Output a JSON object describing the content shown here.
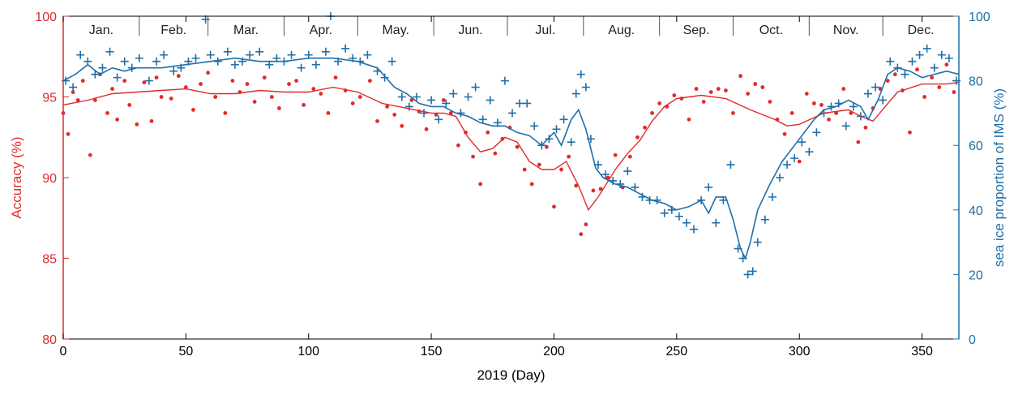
{
  "chart_data": {
    "type": "scatter",
    "xlabel": "2019 (Day)",
    "ylabel_left": "Accuracy (%)",
    "ylabel_right": "sea ice proportion of IMS (%)",
    "xlim": [
      0,
      365
    ],
    "ylim_left": [
      80,
      100
    ],
    "ylim_right": [
      0,
      100
    ],
    "x_ticks": [
      "0",
      "50",
      "100",
      "150",
      "200",
      "250",
      "300",
      "350"
    ],
    "x_tick_values": [
      0,
      50,
      100,
      150,
      200,
      250,
      300,
      350
    ],
    "y_left_ticks": [
      "80",
      "85",
      "90",
      "95",
      "100"
    ],
    "y_left_tick_values": [
      80,
      85,
      90,
      95,
      100
    ],
    "y_right_ticks": [
      "0",
      "20",
      "40",
      "60",
      "80",
      "100"
    ],
    "y_right_tick_values": [
      0,
      20,
      40,
      60,
      80,
      100
    ],
    "months": [
      "Jan.",
      "Feb.",
      "Mar.",
      "Apr.",
      "May.",
      "Jun.",
      "Jul.",
      "Aug.",
      "Sep.",
      "Oct.",
      "Nov.",
      "Dec."
    ],
    "month_starts": [
      0,
      31,
      59,
      90,
      120,
      151,
      181,
      212,
      243,
      273,
      304,
      334,
      365
    ],
    "grid": false,
    "colors": {
      "accuracy": "#e02b2b",
      "ims": "#1f6fa8",
      "axis": "#000000"
    },
    "series": [
      {
        "axis": "left",
        "marker": "dot",
        "smooth_x": [
          0,
          10,
          20,
          30,
          40,
          50,
          60,
          70,
          80,
          90,
          100,
          110,
          120,
          130,
          140,
          150,
          155,
          160,
          165,
          170,
          175,
          180,
          185,
          190,
          195,
          200,
          205,
          210,
          214,
          218,
          225,
          230,
          235,
          240,
          245,
          250,
          255,
          260,
          270,
          280,
          290,
          295,
          300,
          310,
          320,
          325,
          330,
          340,
          350,
          360,
          365
        ],
        "smooth_y": [
          94.5,
          94.8,
          95.2,
          95.3,
          95.4,
          95.5,
          95.2,
          95.2,
          95.4,
          95.3,
          95.3,
          95.6,
          95.3,
          94.6,
          94.3,
          94.0,
          94.0,
          93.8,
          92.5,
          91.6,
          91.8,
          92.5,
          92.2,
          91.0,
          90.5,
          90.5,
          91.0,
          89.5,
          88.0,
          88.8,
          90.5,
          91.5,
          92.3,
          93.5,
          94.4,
          94.9,
          95.0,
          95.1,
          94.9,
          94.2,
          93.6,
          93.2,
          93.3,
          94.0,
          94.2,
          93.8,
          93.5,
          95.3,
          95.8,
          95.8,
          95.9
        ],
        "scatter_x": [
          0,
          2,
          4,
          6,
          8,
          11,
          13,
          15,
          18,
          20,
          22,
          25,
          27,
          30,
          33,
          36,
          38,
          40,
          44,
          47,
          50,
          53,
          56,
          59,
          62,
          66,
          69,
          72,
          75,
          78,
          82,
          85,
          88,
          92,
          95,
          98,
          102,
          105,
          108,
          111,
          115,
          118,
          121,
          125,
          128,
          132,
          135,
          138,
          142,
          145,
          148,
          152,
          155,
          158,
          161,
          164,
          167,
          170,
          173,
          176,
          179,
          182,
          185,
          188,
          191,
          194,
          197,
          200,
          203,
          206,
          209,
          211,
          213,
          216,
          219,
          222,
          225,
          228,
          231,
          234,
          237,
          240,
          243,
          246,
          249,
          252,
          255,
          258,
          261,
          264,
          267,
          270,
          273,
          276,
          279,
          282,
          285,
          288,
          291,
          294,
          297,
          300,
          303,
          306,
          309,
          312,
          315,
          318,
          321,
          324,
          327,
          330,
          333,
          336,
          339,
          342,
          345,
          348,
          351,
          354,
          357,
          360,
          363
        ],
        "scatter_y": [
          94.0,
          92.7,
          95.3,
          94.8,
          96.0,
          91.4,
          94.8,
          96.4,
          94.0,
          95.5,
          93.6,
          96.0,
          94.5,
          93.3,
          95.9,
          93.5,
          96.2,
          95.0,
          94.9,
          96.3,
          95.6,
          94.2,
          95.8,
          96.5,
          95.0,
          94.0,
          96.0,
          95.3,
          95.8,
          94.7,
          96.2,
          95.0,
          94.3,
          95.8,
          96.0,
          94.5,
          95.5,
          95.2,
          94.0,
          96.2,
          95.4,
          94.6,
          95.0,
          96.0,
          93.5,
          94.4,
          93.9,
          93.2,
          94.8,
          94.1,
          93.0,
          93.9,
          94.8,
          94.0,
          92.0,
          92.8,
          91.3,
          89.6,
          92.8,
          91.5,
          92.4,
          93.1,
          91.9,
          90.5,
          89.6,
          90.8,
          91.9,
          88.2,
          90.5,
          91.3,
          89.5,
          86.5,
          87.1,
          89.2,
          89.3,
          90.0,
          91.4,
          89.4,
          91.3,
          92.5,
          93.1,
          94.0,
          94.6,
          94.4,
          95.1,
          94.9,
          93.6,
          95.5,
          94.7,
          95.3,
          95.5,
          95.4,
          94.0,
          96.3,
          95.2,
          95.8,
          95.6,
          94.7,
          93.6,
          92.7,
          94.0,
          91.0,
          95.2,
          94.6,
          94.5,
          93.6,
          94.0,
          95.5,
          94.0,
          92.2,
          93.1,
          94.3,
          95.5,
          96.0,
          96.4,
          95.4,
          92.8,
          96.7,
          95.0,
          96.2,
          95.6,
          97.0,
          95.3
        ]
      },
      {
        "axis": "right",
        "marker": "plus",
        "smooth_x": [
          0,
          5,
          10,
          15,
          20,
          25,
          30,
          40,
          50,
          60,
          70,
          80,
          90,
          100,
          110,
          120,
          128,
          135,
          140,
          145,
          150,
          155,
          160,
          165,
          170,
          175,
          180,
          185,
          190,
          195,
          200,
          203,
          207,
          210,
          213,
          217,
          220,
          225,
          230,
          235,
          240,
          245,
          250,
          255,
          260,
          263,
          266,
          270,
          273,
          276,
          278,
          280,
          283,
          288,
          293,
          298,
          302,
          306,
          310,
          315,
          320,
          325,
          328,
          332,
          336,
          340,
          345,
          350,
          355,
          360,
          365
        ],
        "smooth_y": [
          80,
          82,
          85,
          82,
          84,
          83,
          84,
          84,
          85,
          86,
          87,
          86,
          86,
          87,
          87,
          86,
          84,
          78,
          76,
          73,
          72,
          72,
          70,
          69,
          67,
          66,
          66,
          64,
          63,
          60,
          64,
          60,
          68,
          71,
          65,
          53,
          50,
          48,
          47,
          45,
          43,
          42,
          40,
          41,
          43,
          39,
          44,
          44,
          37,
          28,
          25,
          30,
          40,
          48,
          55,
          60,
          64,
          68,
          71,
          72,
          74,
          72,
          68,
          74,
          82,
          84,
          83,
          81,
          82,
          83,
          82
        ],
        "scatter_x": [
          1,
          4,
          7,
          10,
          13,
          16,
          19,
          22,
          25,
          28,
          31,
          35,
          38,
          41,
          45,
          48,
          51,
          54,
          58,
          60,
          63,
          67,
          70,
          73,
          76,
          80,
          84,
          87,
          90,
          93,
          97,
          100,
          103,
          107,
          109,
          112,
          115,
          118,
          121,
          124,
          128,
          131,
          134,
          138,
          141,
          144,
          147,
          150,
          153,
          156,
          159,
          162,
          165,
          168,
          171,
          174,
          177,
          180,
          183,
          186,
          189,
          192,
          195,
          198,
          201,
          204,
          207,
          209,
          211,
          213,
          215,
          218,
          221,
          224,
          227,
          230,
          233,
          236,
          239,
          242,
          245,
          248,
          251,
          254,
          257,
          260,
          263,
          266,
          269,
          272,
          275,
          277,
          279,
          281,
          283,
          286,
          289,
          292,
          295,
          298,
          301,
          304,
          307,
          310,
          313,
          316,
          319,
          322,
          325,
          328,
          331,
          334,
          337,
          340,
          343,
          346,
          349,
          352,
          355,
          358,
          361,
          364
        ],
        "scatter_y": [
          80,
          78,
          88,
          86,
          82,
          84,
          89,
          81,
          86,
          84,
          87,
          80,
          86,
          88,
          83,
          84,
          86,
          87,
          99,
          88,
          86,
          89,
          85,
          86,
          88,
          89,
          85,
          87,
          86,
          88,
          84,
          88,
          85,
          89,
          100,
          86,
          90,
          87,
          86,
          88,
          83,
          81,
          86,
          75,
          72,
          75,
          70,
          74,
          68,
          73,
          76,
          70,
          75,
          78,
          68,
          74,
          67,
          80,
          70,
          73,
          73,
          66,
          60,
          62,
          65,
          68,
          61,
          76,
          82,
          78,
          62,
          54,
          51,
          49,
          48,
          52,
          47,
          44,
          43,
          43,
          39,
          40,
          38,
          36,
          34,
          43,
          47,
          36,
          43,
          54,
          28,
          25,
          20,
          21,
          30,
          37,
          44,
          50,
          54,
          56,
          61,
          58,
          64,
          70,
          72,
          73,
          66,
          72,
          69,
          76,
          78,
          74,
          86,
          84,
          82,
          86,
          88,
          90,
          84,
          88,
          87,
          80
        ]
      }
    ]
  }
}
